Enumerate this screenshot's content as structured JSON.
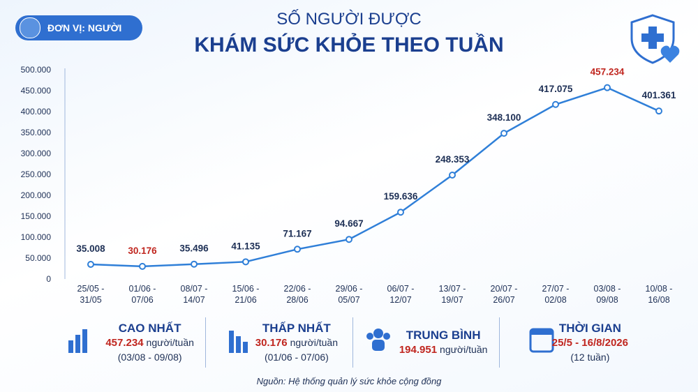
{
  "badge": "ĐƠN VỊ: NGƯỜI",
  "chart_data": {
    "type": "line",
    "title": "SỐ NGƯỜI ĐƯỢC",
    "subtitle": "KHÁM SỨC KHỎE THEO TUẦN",
    "categories": [
      "25/05 - 31/05",
      "01/06 - 07/06",
      "08/07 - 14/07",
      "15/06 - 21/06",
      "22/06 - 28/06",
      "29/06 - 05/07",
      "06/07 - 12/07",
      "13/07 - 19/07",
      "20/07 - 26/07",
      "27/07 - 02/08",
      "03/08 - 09/08",
      "10/08 - 16/08"
    ],
    "values": [
      35008,
      30176,
      35496,
      41135,
      71167,
      94667,
      159636,
      248353,
      348100,
      417075,
      457234,
      401361
    ],
    "value_labels": [
      "35.008",
      "30.176",
      "35.496",
      "41.135",
      "71.167",
      "94.667",
      "159.636",
      "248.353",
      "348.100",
      "417.075",
      "457.234",
      "401.361"
    ],
    "color": "#2f7fd8",
    "highlight_color": "#c0261f",
    "ylim": [
      0,
      500000
    ],
    "yticks": [
      0,
      {
        "value": 50000,
        "label": "50.000"
      },
      {
        "value": 100000,
        "label": "100.000"
      },
      {
        "value": 150000,
        "label": "150.000"
      },
      {
        "value": 200000,
        "label": "200.000"
      },
      {
        "value": 250000,
        "label": "250.000"
      },
      {
        "value": 300000,
        "label": "300.000"
      },
      {
        "value": 350000,
        "label": "350.000"
      },
      {
        "value": 400000,
        "label": "400.000"
      },
      {
        "value": 450000,
        "label": "450.000"
      },
      {
        "value": 500000,
        "label": "500.000"
      }
    ],
    "grid": false
  },
  "summary": [
    {
      "title": "CAO NHẤT",
      "value": "457.234",
      "unit": "người/tuần",
      "detail": "(03/08 - 09/08)"
    },
    {
      "title": "THẤP NHẤT",
      "value": "30.176",
      "unit": "người/tuần",
      "detail": "(01/06 - 07/06)"
    },
    {
      "title": "TRUNG BÌNH",
      "value": "194.951",
      "unit": "người/tuần"
    },
    {
      "title": "THỜI GIAN",
      "value": "25/5 - 16/8/2026",
      "detail": "(12 tuần)"
    }
  ],
  "source": "Nguồn: Hệ thống quản lý sức khỏe cộng đồng"
}
